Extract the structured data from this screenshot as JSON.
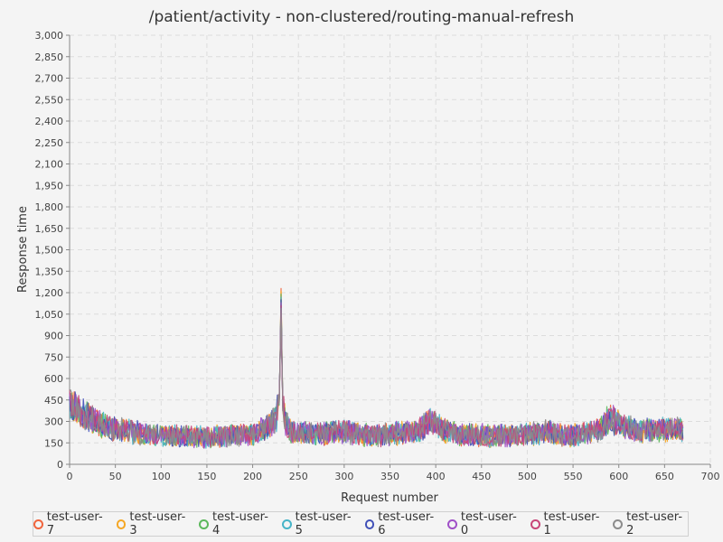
{
  "chart_data": {
    "type": "line",
    "title": "/patient/activity - non-clustered/routing-manual-refresh",
    "xlabel": "Request number",
    "ylabel": "Response time",
    "xlim": [
      0,
      700
    ],
    "ylim": [
      0,
      3000
    ],
    "x_ticks": [
      "0",
      "50",
      "100",
      "150",
      "200",
      "250",
      "300",
      "350",
      "400",
      "450",
      "500",
      "550",
      "600",
      "650",
      "700"
    ],
    "y_ticks": [
      "0",
      "150",
      "300",
      "450",
      "600",
      "750",
      "900",
      "1,050",
      "1,200",
      "1,350",
      "1,500",
      "1,650",
      "1,800",
      "1,950",
      "2,100",
      "2,250",
      "2,400",
      "2,550",
      "2,700",
      "2,850",
      "3,000"
    ],
    "grid": true,
    "legend_position": "bottom",
    "profile_x": [
      0,
      10,
      20,
      30,
      40,
      60,
      80,
      100,
      120,
      140,
      160,
      180,
      200,
      210,
      220,
      226,
      229,
      231,
      233,
      236,
      240,
      250,
      270,
      300,
      320,
      340,
      360,
      380,
      395,
      410,
      430,
      460,
      500,
      520,
      540,
      560,
      580,
      590,
      600,
      620,
      640,
      660,
      670
    ],
    "profile_y": [
      430,
      370,
      330,
      290,
      260,
      240,
      210,
      200,
      195,
      190,
      195,
      200,
      205,
      240,
      280,
      330,
      480,
      1230,
      430,
      300,
      230,
      220,
      215,
      225,
      210,
      200,
      220,
      230,
      310,
      230,
      205,
      200,
      205,
      230,
      200,
      210,
      240,
      330,
      280,
      230,
      240,
      250,
      240
    ],
    "series": [
      {
        "name": "test-user-7",
        "color": "#f0643c"
      },
      {
        "name": "test-user-3",
        "color": "#f5a623"
      },
      {
        "name": "test-user-4",
        "color": "#5cb85c"
      },
      {
        "name": "test-user-5",
        "color": "#46b4c8"
      },
      {
        "name": "test-user-6",
        "color": "#4050b8"
      },
      {
        "name": "test-user-0",
        "color": "#a050c8"
      },
      {
        "name": "test-user-1",
        "color": "#c84678"
      },
      {
        "name": "test-user-2",
        "color": "#8c8c8c"
      }
    ]
  }
}
